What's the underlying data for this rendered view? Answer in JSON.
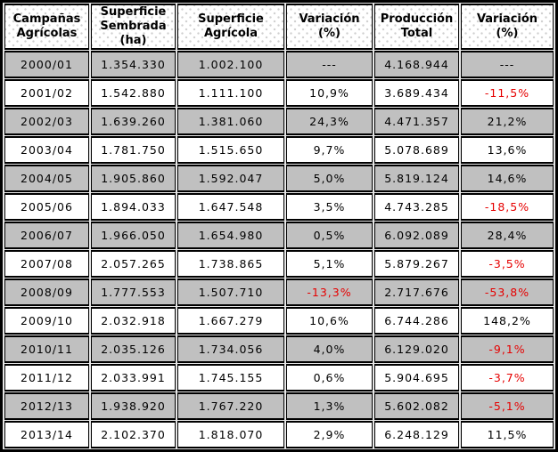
{
  "chart_data": {
    "type": "table",
    "columns": [
      "Campañas Agrícolas",
      "Superficie Sembrada (ha)",
      "Superficie Agrícola",
      "Variación (%)",
      "Producción Total",
      "Variación (%)"
    ],
    "rows": [
      [
        "2000/01",
        "1.354.330",
        "1.002.100",
        "---",
        "4.168.944",
        "---"
      ],
      [
        "2001/02",
        "1.542.880",
        "1.111.100",
        "10,9%",
        "3.689.434",
        "-11,5%"
      ],
      [
        "2002/03",
        "1.639.260",
        "1.381.060",
        "24,3%",
        "4.471.357",
        "21,2%"
      ],
      [
        "2003/04",
        "1.781.750",
        "1.515.650",
        "9,7%",
        "5.078.689",
        "13,6%"
      ],
      [
        "2004/05",
        "1.905.860",
        "1.592.047",
        "5,0%",
        "5.819.124",
        "14,6%"
      ],
      [
        "2005/06",
        "1.894.033",
        "1.647.548",
        "3,5%",
        "4.743.285",
        "-18,5%"
      ],
      [
        "2006/07",
        "1.966.050",
        "1.654.980",
        "0,5%",
        "6.092.089",
        "28,4%"
      ],
      [
        "2007/08",
        "2.057.265",
        "1.738.865",
        "5,1%",
        "5.879.267",
        "-3,5%"
      ],
      [
        "2008/09",
        "1.777.553",
        "1.507.710",
        "-13,3%",
        "2.717.676",
        "-53,8%"
      ],
      [
        "2009/10",
        "2.032.918",
        "1.667.279",
        "10,6%",
        "6.744.286",
        "148,2%"
      ],
      [
        "2010/11",
        "2.035.126",
        "1.734.056",
        "4,0%",
        "6.129.020",
        "-9,1%"
      ],
      [
        "2011/12",
        "2.033.991",
        "1.745.155",
        "0,6%",
        "5.904.695",
        "-3,7%"
      ],
      [
        "2012/13",
        "1.938.920",
        "1.767.220",
        "1,3%",
        "5.602.082",
        "-5,1%"
      ],
      [
        "2013/14",
        "2.102.370",
        "1.818.070",
        "2,9%",
        "6.248.129",
        "11,5%"
      ]
    ]
  },
  "header_labels_multiline": [
    "Campañas\nAgrícolas",
    "Superficie\nSembrada\n(ha)",
    "Superficie\nAgrícola",
    "Variación\n(%)",
    "Producción\nTotal",
    "Variación\n(%)"
  ],
  "colors": {
    "negative_text": "#e60000",
    "positive_text": "#000000",
    "shaded_row_bg": "#c0c0c0",
    "white_row_bg": "#ffffff",
    "border": "#000000",
    "header_dot": "#d0d0d0"
  }
}
